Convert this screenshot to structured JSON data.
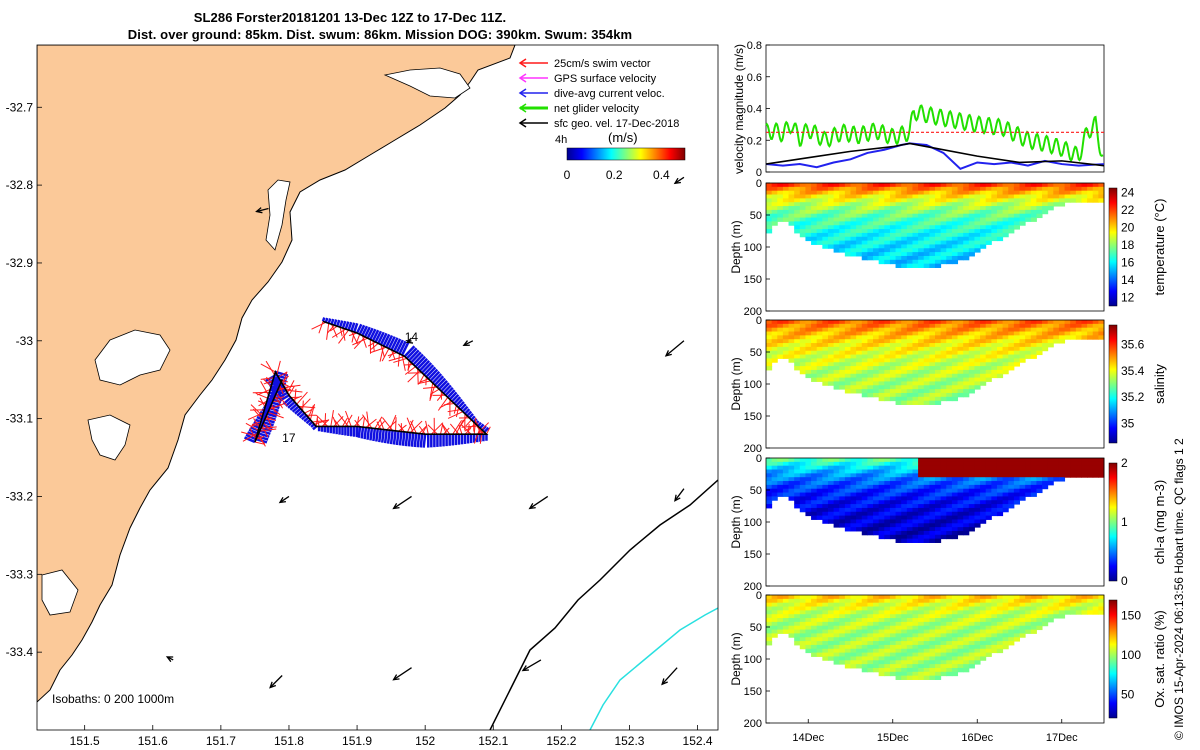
{
  "title_line1": "SL286 Forster20181201 13-Dec 12Z to 17-Dec 11Z.",
  "title_line2": "Dist. over ground: 85km. Dist. swum: 86km. Mission DOG: 390km. Swum: 354km",
  "credit": "© IMOS 15-Apr-2024 06:13:56 Hobart time. QC flags 1  2",
  "colors": {
    "land": "#fbc999",
    "track_red": "#ff1a1a",
    "track_blue": "#1010e0",
    "glider_green": "#22e000",
    "isobath_cyan": "#29e0e0"
  },
  "chart_data": [
    {
      "type": "scatter",
      "name": "map",
      "x_ticks": [
        "151.5",
        "151.6",
        "151.7",
        "151.8",
        "151.9",
        "152",
        "152.1",
        "152.2",
        "152.3",
        "152.4"
      ],
      "y_ticks": [
        "-32.7",
        "-32.8",
        "-32.9",
        "-33",
        "-33.1",
        "-33.2",
        "-33.3",
        "-33.4"
      ],
      "xlim": [
        151.43,
        152.43
      ],
      "ylim": [
        -33.5,
        -32.62
      ],
      "legend": {
        "items": [
          "25cm/s swim vector",
          "GPS surface velocity",
          "dive-avg current veloc.",
          "net glider velocity",
          "sfc geo. vel. 17-Dec-2018"
        ],
        "icon_colors": [
          "#ff1a1a",
          "#ff33ff",
          "#2222ee",
          "#22e000",
          "#000000"
        ],
        "extra": "4h"
      },
      "colorbar": {
        "unit": "(m/s)",
        "ticks": [
          "0",
          "0.2",
          "0.4"
        ],
        "range": [
          0,
          0.5
        ]
      },
      "isobaths_label": "Isobaths: 0   200  1000m",
      "track_labels": [
        {
          "text": "14",
          "lon": 151.97,
          "lat": -33.0
        },
        {
          "text": "17",
          "lon": 151.79,
          "lat": -33.13
        }
      ],
      "track": [
        [
          151.85,
          -32.975
        ],
        [
          151.9,
          -32.99
        ],
        [
          151.97,
          -33.02
        ],
        [
          152.03,
          -33.07
        ],
        [
          152.09,
          -33.12
        ],
        [
          152.0,
          -33.12
        ],
        [
          151.9,
          -33.11
        ],
        [
          151.84,
          -33.11
        ],
        [
          151.8,
          -33.07
        ],
        [
          151.78,
          -33.04
        ],
        [
          151.75,
          -33.13
        ],
        [
          151.79,
          -33.05
        ]
      ],
      "arrows": [
        {
          "lon": 151.77,
          "lat": -32.83,
          "u": -0.4,
          "v": -0.1
        },
        {
          "lon": 152.38,
          "lat": -32.79,
          "u": -0.3,
          "v": -0.2
        },
        {
          "lon": 152.07,
          "lat": -33.0,
          "u": -0.3,
          "v": -0.15
        },
        {
          "lon": 152.38,
          "lat": -33.0,
          "u": -0.6,
          "v": -0.5
        },
        {
          "lon": 151.8,
          "lat": -33.2,
          "u": -0.3,
          "v": -0.2
        },
        {
          "lon": 151.98,
          "lat": -33.2,
          "u": -0.6,
          "v": -0.4
        },
        {
          "lon": 152.18,
          "lat": -33.2,
          "u": -0.6,
          "v": -0.4
        },
        {
          "lon": 152.38,
          "lat": -33.19,
          "u": -0.3,
          "v": -0.4
        },
        {
          "lon": 151.98,
          "lat": -33.0,
          "u": -0.15,
          "v": -0.05
        },
        {
          "lon": 151.79,
          "lat": -33.43,
          "u": -0.4,
          "v": -0.4
        },
        {
          "lon": 151.98,
          "lat": -33.42,
          "u": -0.6,
          "v": -0.4
        },
        {
          "lon": 152.17,
          "lat": -33.41,
          "u": -0.6,
          "v": -0.35
        },
        {
          "lon": 152.37,
          "lat": -33.42,
          "u": -0.5,
          "v": -0.55
        },
        {
          "lon": 151.63,
          "lat": -33.41,
          "u": -0.2,
          "v": 0.1
        }
      ]
    },
    {
      "type": "line",
      "name": "velocity",
      "ylabel": "velocity magnitude (m/s)",
      "ylim": [
        0,
        0.8
      ],
      "y_ticks": [
        "0",
        "0.2",
        "0.4",
        "0.6",
        "0.8"
      ],
      "x_days": [
        13.5,
        17.5
      ],
      "series": [
        {
          "color": "#22e000",
          "x": [
            13.5,
            13.6,
            13.7,
            13.8,
            13.9,
            14.0,
            14.2,
            14.4,
            14.6,
            14.8,
            15.0,
            15.2,
            15.25,
            15.5,
            15.7,
            16.0,
            16.3,
            16.6,
            16.8,
            17.0,
            17.2,
            17.3,
            17.4,
            17.5
          ],
          "y": [
            0.25,
            0.26,
            0.24,
            0.3,
            0.21,
            0.27,
            0.2,
            0.25,
            0.23,
            0.26,
            0.22,
            0.25,
            0.38,
            0.35,
            0.33,
            0.3,
            0.28,
            0.2,
            0.18,
            0.15,
            0.1,
            0.25,
            0.3,
            0.05
          ]
        },
        {
          "color": "#2222ee",
          "x": [
            13.5,
            13.7,
            13.9,
            14.1,
            14.3,
            14.5,
            14.7,
            14.9,
            15.1,
            15.2,
            15.4,
            15.6,
            15.8,
            16.0,
            16.2,
            16.4,
            16.6,
            16.8,
            17.0,
            17.2,
            17.5
          ],
          "y": [
            0.05,
            0.04,
            0.05,
            0.03,
            0.06,
            0.08,
            0.12,
            0.14,
            0.17,
            0.18,
            0.17,
            0.12,
            0.02,
            0.06,
            0.05,
            0.06,
            0.04,
            0.07,
            0.05,
            0.04,
            0.05
          ]
        },
        {
          "color": "#000000",
          "x": [
            13.5,
            14.0,
            14.5,
            15.0,
            15.2,
            15.5,
            16.0,
            16.5,
            17.0,
            17.5
          ],
          "y": [
            0.05,
            0.09,
            0.13,
            0.16,
            0.18,
            0.15,
            0.1,
            0.06,
            0.07,
            0.04
          ]
        },
        {
          "color": "#ff1a1a",
          "x": [
            13.5,
            17.5
          ],
          "y": [
            0.25,
            0.25
          ]
        }
      ]
    },
    {
      "type": "heatmap",
      "name": "temperature",
      "ylabel": "Depth (m)",
      "clabel": "temperature (°C)",
      "ylim": [
        0,
        200
      ],
      "y_ticks": [
        "0",
        "50",
        "100",
        "150",
        "200"
      ],
      "c_ticks": [
        "12",
        "14",
        "16",
        "18",
        "20",
        "22",
        "24"
      ],
      "crange": [
        11,
        24.5
      ],
      "bottom_depth": [
        [
          13.5,
          80
        ],
        [
          13.7,
          50
        ],
        [
          14.0,
          90
        ],
        [
          14.5,
          110
        ],
        [
          15.0,
          125
        ],
        [
          15.3,
          132
        ],
        [
          15.8,
          120
        ],
        [
          16.2,
          90
        ],
        [
          16.6,
          60
        ],
        [
          16.9,
          35
        ],
        [
          17.2,
          25
        ],
        [
          17.5,
          30
        ]
      ],
      "surface_value": 22,
      "deep_value": 15,
      "thermocline_depth": 45
    },
    {
      "type": "heatmap",
      "name": "salinity",
      "ylabel": "Depth (m)",
      "clabel": "salinity",
      "ylim": [
        0,
        200
      ],
      "y_ticks": [
        "0",
        "50",
        "100",
        "150",
        "200"
      ],
      "c_ticks": [
        "35",
        "35.2",
        "35.4",
        "35.6"
      ],
      "crange": [
        34.85,
        35.75
      ],
      "bottom_depth": [
        [
          13.5,
          80
        ],
        [
          13.7,
          50
        ],
        [
          14.0,
          90
        ],
        [
          14.5,
          110
        ],
        [
          15.0,
          125
        ],
        [
          15.3,
          132
        ],
        [
          15.8,
          120
        ],
        [
          16.2,
          90
        ],
        [
          16.6,
          60
        ],
        [
          16.9,
          35
        ],
        [
          17.2,
          25
        ],
        [
          17.5,
          30
        ]
      ],
      "surface_value": 35.55,
      "deep_value": 35.3,
      "thermocline_depth": 50
    },
    {
      "type": "heatmap",
      "name": "chla",
      "ylabel": "Depth (m)",
      "clabel": "chl-a (mg m-3)",
      "ylim": [
        0,
        200
      ],
      "y_ticks": [
        "0",
        "50",
        "100",
        "150",
        "200"
      ],
      "c_ticks": [
        "0",
        "1",
        "2"
      ],
      "crange": [
        0,
        2
      ],
      "bottom_depth": [
        [
          13.5,
          80
        ],
        [
          13.7,
          50
        ],
        [
          14.0,
          90
        ],
        [
          14.5,
          110
        ],
        [
          15.0,
          125
        ],
        [
          15.3,
          132
        ],
        [
          15.8,
          120
        ],
        [
          16.2,
          90
        ],
        [
          16.6,
          60
        ],
        [
          16.9,
          35
        ],
        [
          17.2,
          25
        ],
        [
          17.5,
          30
        ]
      ],
      "surface_value": 0.9,
      "deep_value": 0.1,
      "thermocline_depth": 40
    },
    {
      "type": "heatmap",
      "name": "oxygen",
      "ylabel": "Depth (m)",
      "clabel": "Ox. sat. ratio (%)",
      "ylim": [
        0,
        200
      ],
      "y_ticks": [
        "0",
        "50",
        "100",
        "150",
        "200"
      ],
      "c_ticks": [
        "50",
        "100",
        "150"
      ],
      "crange": [
        20,
        170
      ],
      "bottom_depth": [
        [
          13.5,
          80
        ],
        [
          13.7,
          50
        ],
        [
          14.0,
          90
        ],
        [
          14.5,
          110
        ],
        [
          15.0,
          125
        ],
        [
          15.3,
          132
        ],
        [
          15.8,
          120
        ],
        [
          16.2,
          90
        ],
        [
          16.6,
          60
        ],
        [
          16.9,
          35
        ],
        [
          17.2,
          25
        ],
        [
          17.5,
          30
        ]
      ],
      "surface_value": 120,
      "deep_value": 100,
      "thermocline_depth": 20
    },
    {
      "type": "line",
      "name": "time_axis",
      "x_ticks": [
        {
          "label": "14Dec",
          "day": 14
        },
        {
          "label": "15Dec",
          "day": 15
        },
        {
          "label": "16Dec",
          "day": 16
        },
        {
          "label": "17Dec",
          "day": 17
        }
      ]
    }
  ]
}
